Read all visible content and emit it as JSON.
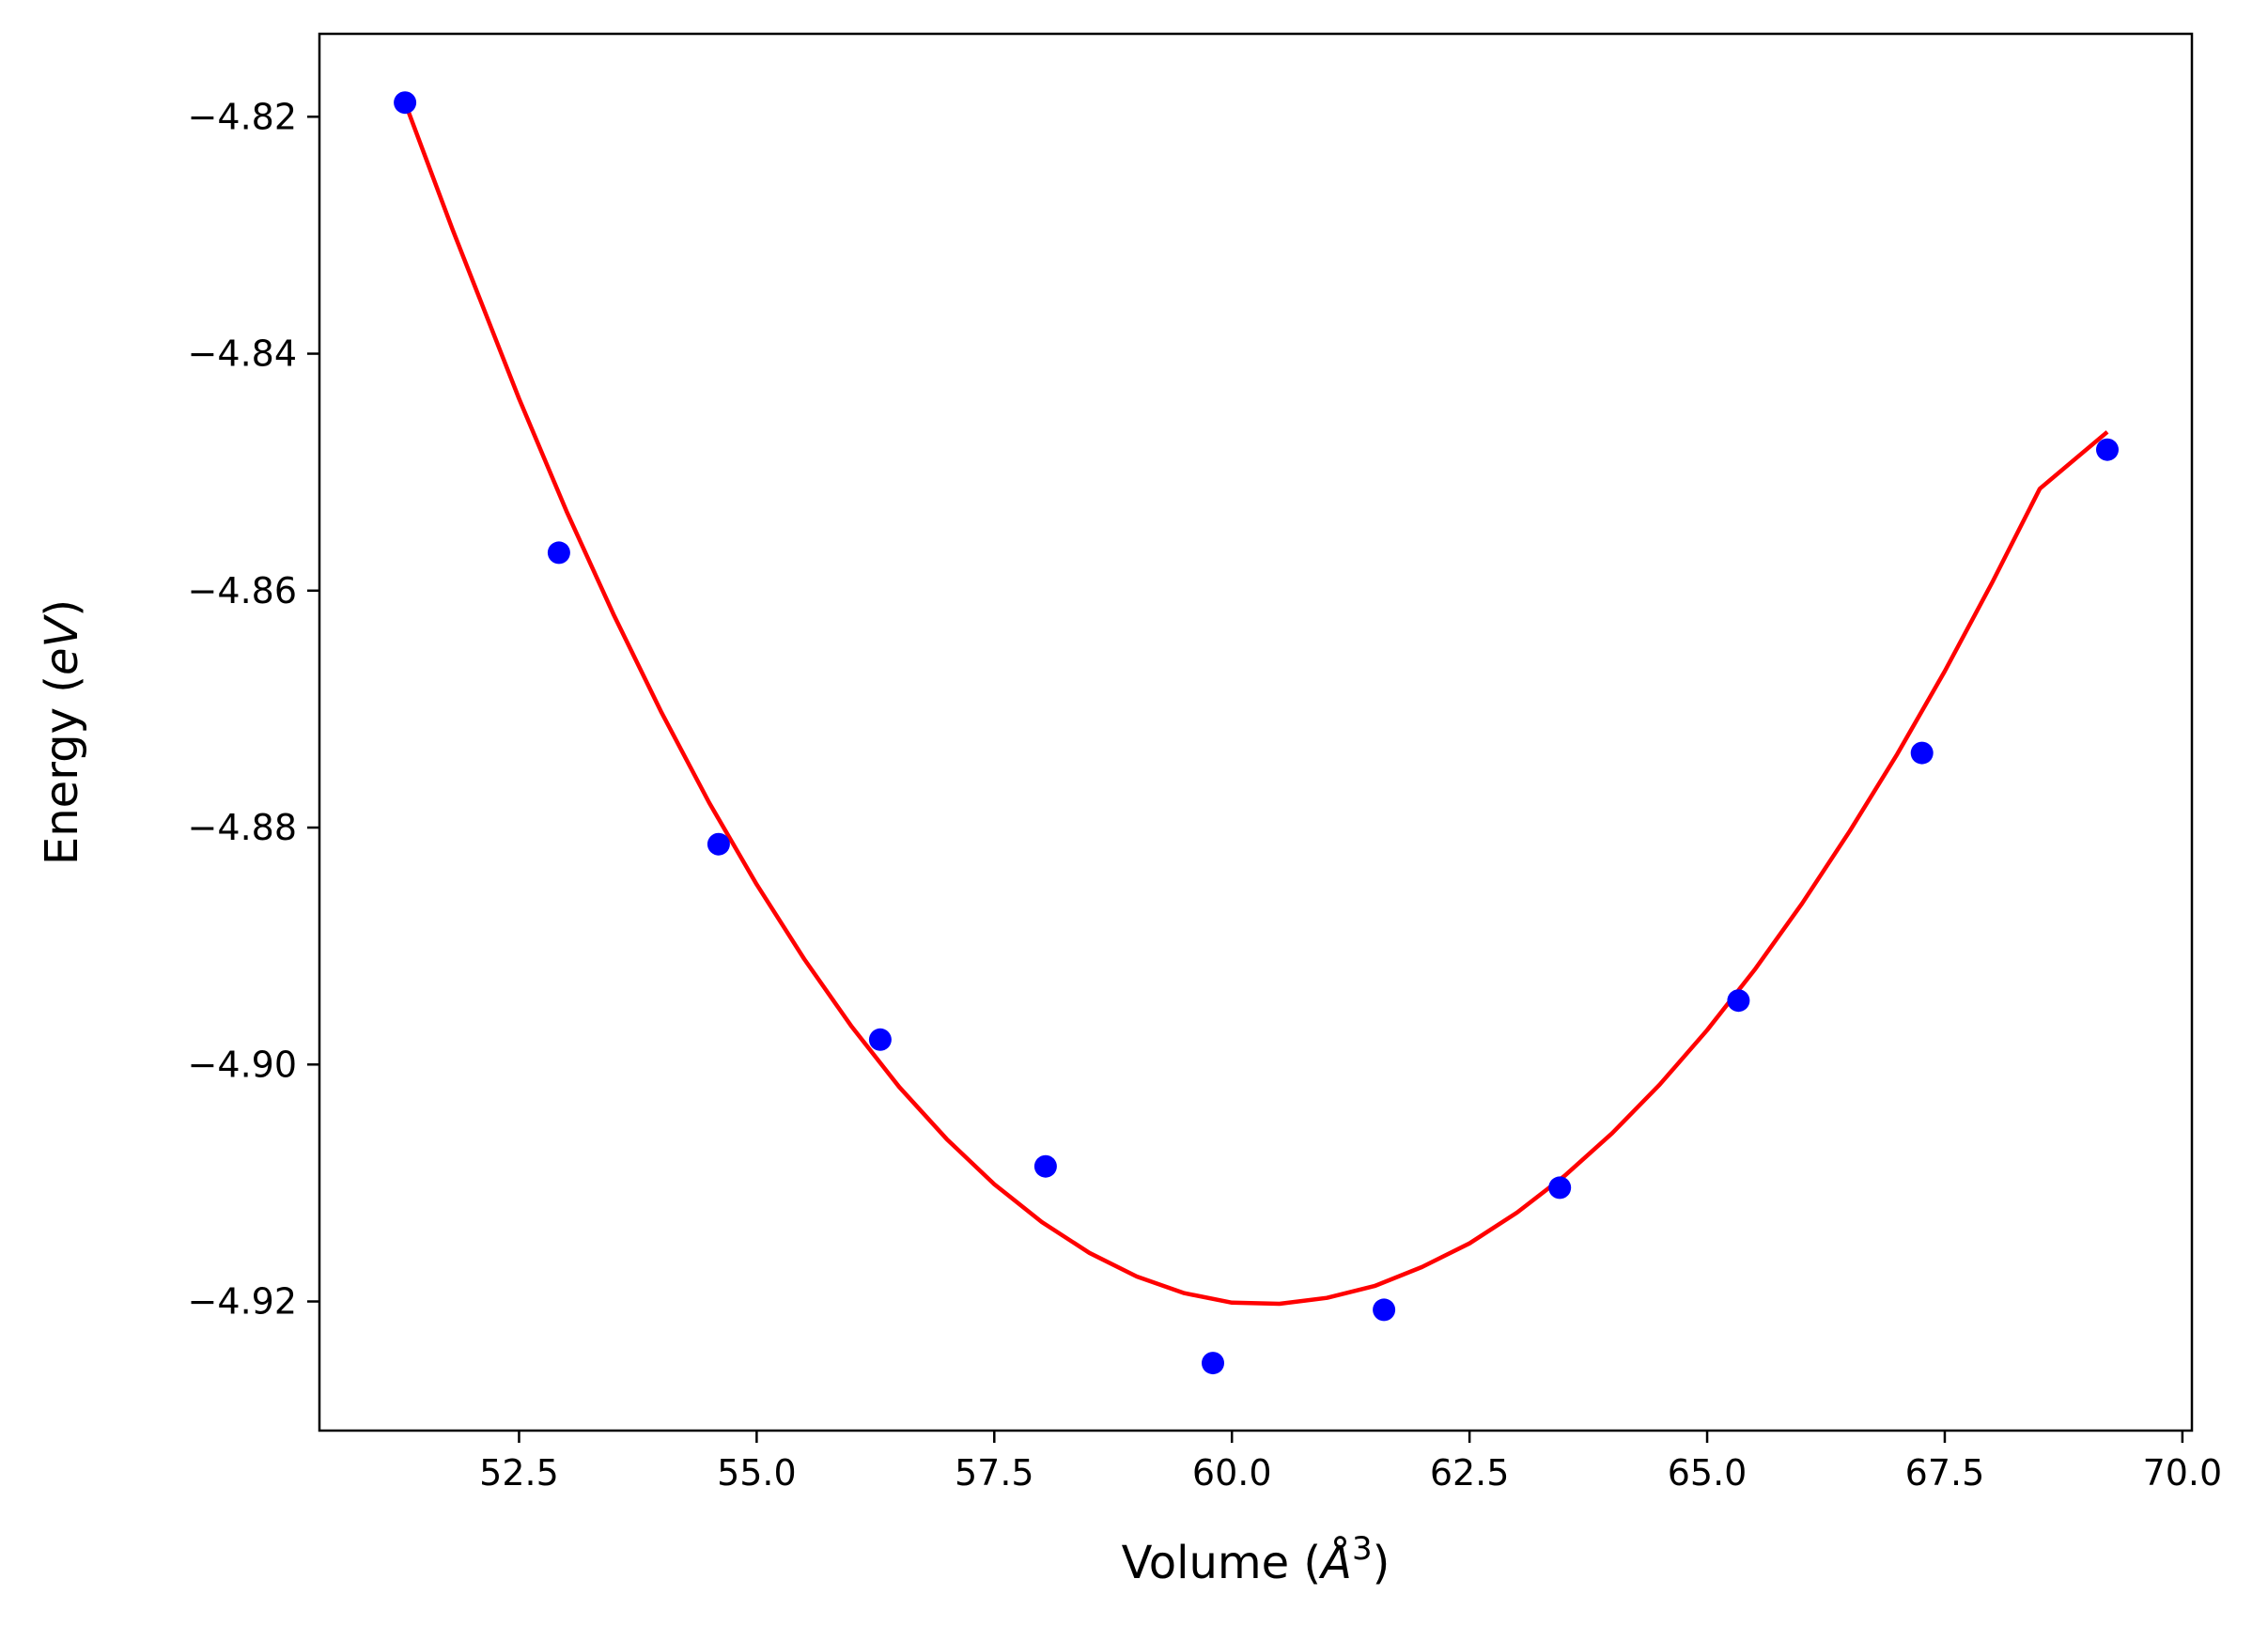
{
  "chart_data": {
    "type": "scatter",
    "title": "",
    "xlabel": {
      "prefix": "Volume (",
      "symbol": "Å",
      "sup": "3",
      "suffix": ")"
    },
    "ylabel": {
      "prefix": "Energy (",
      "symbol": "eV",
      "suffix": ")"
    },
    "xlim": [
      50.4,
      70.1
    ],
    "ylim": [
      -4.9309,
      -4.813
    ],
    "xticks": [
      52.5,
      55.0,
      57.5,
      60.0,
      62.5,
      65.0,
      67.5,
      70.0
    ],
    "xtick_labels": [
      "52.5",
      "55.0",
      "57.5",
      "60.0",
      "62.5",
      "65.0",
      "67.5",
      "70.0"
    ],
    "yticks": [
      -4.82,
      -4.84,
      -4.86,
      -4.88,
      -4.9,
      -4.92
    ],
    "ytick_labels": [
      "−4.82",
      "−4.84",
      "−4.86",
      "−4.88",
      "−4.90",
      "−4.92"
    ],
    "grid": false,
    "legend": "none",
    "series": [
      {
        "kind": "points",
        "color": "#0000ff",
        "x": [
          51.3,
          52.92,
          54.6,
          56.3,
          58.04,
          59.8,
          61.6,
          63.45,
          65.33,
          67.26,
          69.21
        ],
        "y": [
          -4.8188,
          -4.8568,
          -4.8814,
          -4.8979,
          -4.9086,
          -4.9252,
          -4.9207,
          -4.9104,
          -4.8946,
          -4.8737,
          -4.8481
        ]
      },
      {
        "kind": "fit-curve",
        "color": "#ff0000",
        "x": [
          51.3,
          51.8,
          52.5,
          53.0,
          53.5,
          54.0,
          54.5,
          55.0,
          55.5,
          56.0,
          56.5,
          57.0,
          57.5,
          58.0,
          58.5,
          59.0,
          59.5,
          60.0,
          60.5,
          61.0,
          61.5,
          62.0,
          62.5,
          63.0,
          63.5,
          64.0,
          64.5,
          65.0,
          65.5,
          66.0,
          66.5,
          67.0,
          67.5,
          68.0,
          68.5,
          69.21
        ],
        "y": [
          -4.8188,
          -4.8295,
          -4.8438,
          -4.8533,
          -4.8621,
          -4.8703,
          -4.8779,
          -4.8848,
          -4.8911,
          -4.8968,
          -4.9019,
          -4.9063,
          -4.9101,
          -4.9133,
          -4.9159,
          -4.9179,
          -4.9193,
          -4.9201,
          -4.9202,
          -4.9197,
          -4.9187,
          -4.9171,
          -4.9151,
          -4.9125,
          -4.9094,
          -4.9058,
          -4.9017,
          -4.8971,
          -4.892,
          -4.8864,
          -4.8803,
          -4.8738,
          -4.8668,
          -4.8593,
          -4.8514,
          -4.8466
        ]
      }
    ]
  }
}
